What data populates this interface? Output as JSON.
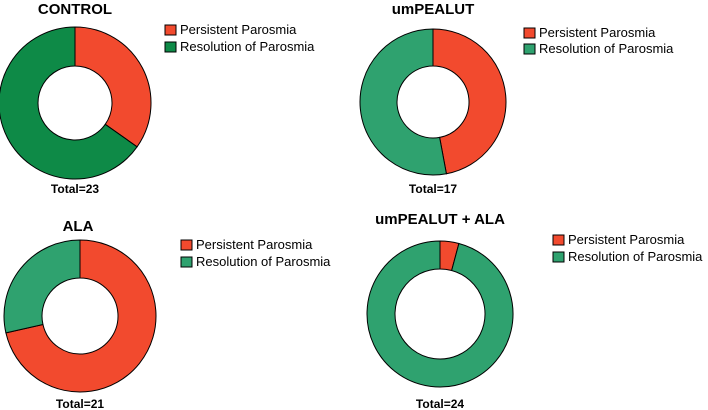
{
  "colors": {
    "persistent": "#F24A2E",
    "resolution": "#2FA26F",
    "resolution_dark": "#0E8A47"
  },
  "chart_data": [
    {
      "type": "pie",
      "title": "CONTROL",
      "total_label": "Total=23",
      "slices": [
        {
          "name": "Persistent Parosmia",
          "value": 8,
          "color": "#F24A2E"
        },
        {
          "name": "Resolution of Parosmia",
          "value": 15,
          "color": "#0E8A47"
        }
      ],
      "legend": [
        "Persistent Parosmia",
        "Resolution of Parosmia"
      ],
      "legend_position": "right"
    },
    {
      "type": "pie",
      "title": "umPEALUT",
      "total_label": "Total=17",
      "slices": [
        {
          "name": "Persistent Parosmia",
          "value": 8,
          "color": "#F24A2E"
        },
        {
          "name": "Resolution of Parosmia",
          "value": 9,
          "color": "#2FA26F"
        }
      ],
      "legend": [
        "Persistent Parosmia",
        "Resolution of Parosmia"
      ],
      "legend_position": "right"
    },
    {
      "type": "pie",
      "title": "ALA",
      "total_label": "Total=21",
      "slices": [
        {
          "name": "Persistent Parosmia",
          "value": 15,
          "color": "#F24A2E"
        },
        {
          "name": "Resolution of Parosmia",
          "value": 6,
          "color": "#2FA26F"
        }
      ],
      "legend": [
        "Persistent Parosmia",
        "Resolution of Parosmia"
      ],
      "legend_position": "right"
    },
    {
      "type": "pie",
      "title": "umPEALUT + ALA",
      "total_label": "Total=24",
      "slices": [
        {
          "name": "Persistent Parosmia",
          "value": 1,
          "color": "#F24A2E"
        },
        {
          "name": "Resolution of Parosmia",
          "value": 23,
          "color": "#2FA26F"
        }
      ],
      "legend": [
        "Persistent Parosmia",
        "Resolution of Parosmia"
      ],
      "legend_position": "right"
    }
  ]
}
